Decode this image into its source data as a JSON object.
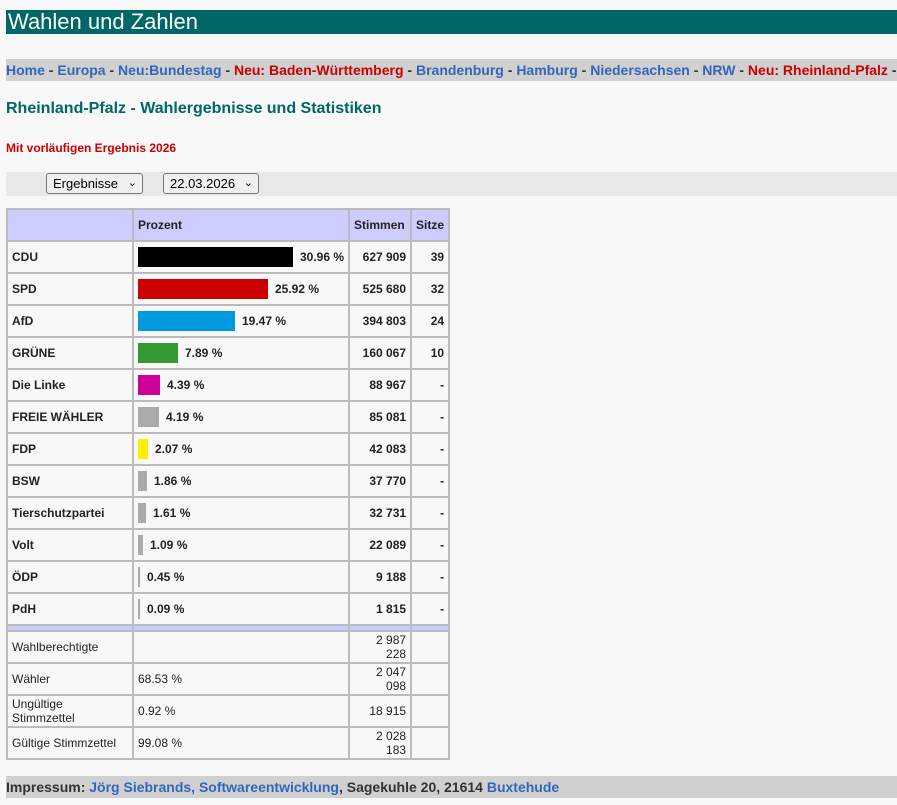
{
  "site_title": "Wahlen und Zahlen",
  "nav": [
    {
      "label": "Home",
      "highlight": false
    },
    {
      "label": "Europa",
      "highlight": false
    },
    {
      "label": "Neu:Bundestag",
      "highlight": false
    },
    {
      "label": "Neu: Baden-Württemberg",
      "highlight": true
    },
    {
      "label": "Brandenburg",
      "highlight": false
    },
    {
      "label": "Hamburg",
      "highlight": false
    },
    {
      "label": "Niedersachsen",
      "highlight": false
    },
    {
      "label": "NRW",
      "highlight": false
    },
    {
      "label": "Neu: Rheinland-Pfalz",
      "highlight": true
    }
  ],
  "nav_separator": "-",
  "page_title": "Rheinland-Pfalz - Wahlergebnisse und Statistiken",
  "subtitle": "Mit vorläufigen Ergebnis 2026",
  "filters": {
    "view": "Ergebnisse",
    "date": "22.03.2026"
  },
  "table": {
    "headers": {
      "party": "",
      "percent": "Prozent",
      "votes": "Stimmen",
      "seats": "Sitze"
    },
    "parties": [
      {
        "name": "CDU",
        "percent": 30.96,
        "percent_label": "30.96 %",
        "votes": "627 909",
        "seats": "39",
        "color": "#000000"
      },
      {
        "name": "SPD",
        "percent": 25.92,
        "percent_label": "25.92 %",
        "votes": "525 680",
        "seats": "32",
        "color": "#cc0000"
      },
      {
        "name": "AfD",
        "percent": 19.47,
        "percent_label": "19.47 %",
        "votes": "394 803",
        "seats": "24",
        "color": "#0099dd"
      },
      {
        "name": "GRÜNE",
        "percent": 7.89,
        "percent_label": "7.89 %",
        "votes": "160 067",
        "seats": "10",
        "color": "#339933"
      },
      {
        "name": "Die Linke",
        "percent": 4.39,
        "percent_label": "4.39 %",
        "votes": "88 967",
        "seats": "-",
        "color": "#cc0099"
      },
      {
        "name": "FREIE WÄHLER",
        "percent": 4.19,
        "percent_label": "4.19 %",
        "votes": "85 081",
        "seats": "-",
        "color": "#aaaaaa"
      },
      {
        "name": "FDP",
        "percent": 2.07,
        "percent_label": "2.07 %",
        "votes": "42 083",
        "seats": "-",
        "color": "#ffee00"
      },
      {
        "name": "BSW",
        "percent": 1.86,
        "percent_label": "1.86 %",
        "votes": "37 770",
        "seats": "-",
        "color": "#aaaaaa"
      },
      {
        "name": "Tierschutzpartei",
        "percent": 1.61,
        "percent_label": "1.61 %",
        "votes": "32 731",
        "seats": "-",
        "color": "#aaaaaa"
      },
      {
        "name": "Volt",
        "percent": 1.09,
        "percent_label": "1.09 %",
        "votes": "22 089",
        "seats": "-",
        "color": "#aaaaaa"
      },
      {
        "name": "ÖDP",
        "percent": 0.45,
        "percent_label": "0.45 %",
        "votes": "9 188",
        "seats": "-",
        "color": "#aaaaaa"
      },
      {
        "name": "PdH",
        "percent": 0.09,
        "percent_label": "0.09 %",
        "votes": "1 815",
        "seats": "-",
        "color": "#aaaaaa"
      }
    ],
    "stats": [
      {
        "label": "Wahlberechtigte",
        "percent": "",
        "value": "2 987 228"
      },
      {
        "label": "Wähler",
        "percent": "68.53 %",
        "value": "2 047 098"
      },
      {
        "label": "Ungültige Stimmzettel",
        "percent": "0.92 %",
        "value": "18 915"
      },
      {
        "label": "Gültige Stimmzettel",
        "percent": "99.08 %",
        "value": "2 028 183"
      }
    ]
  },
  "footer": {
    "label": "Impressum:",
    "company": "Jörg Siebrands, Softwareentwicklung",
    "address": ", Sagekuhle 20, 21614",
    "city": "Buxtehude"
  }
}
